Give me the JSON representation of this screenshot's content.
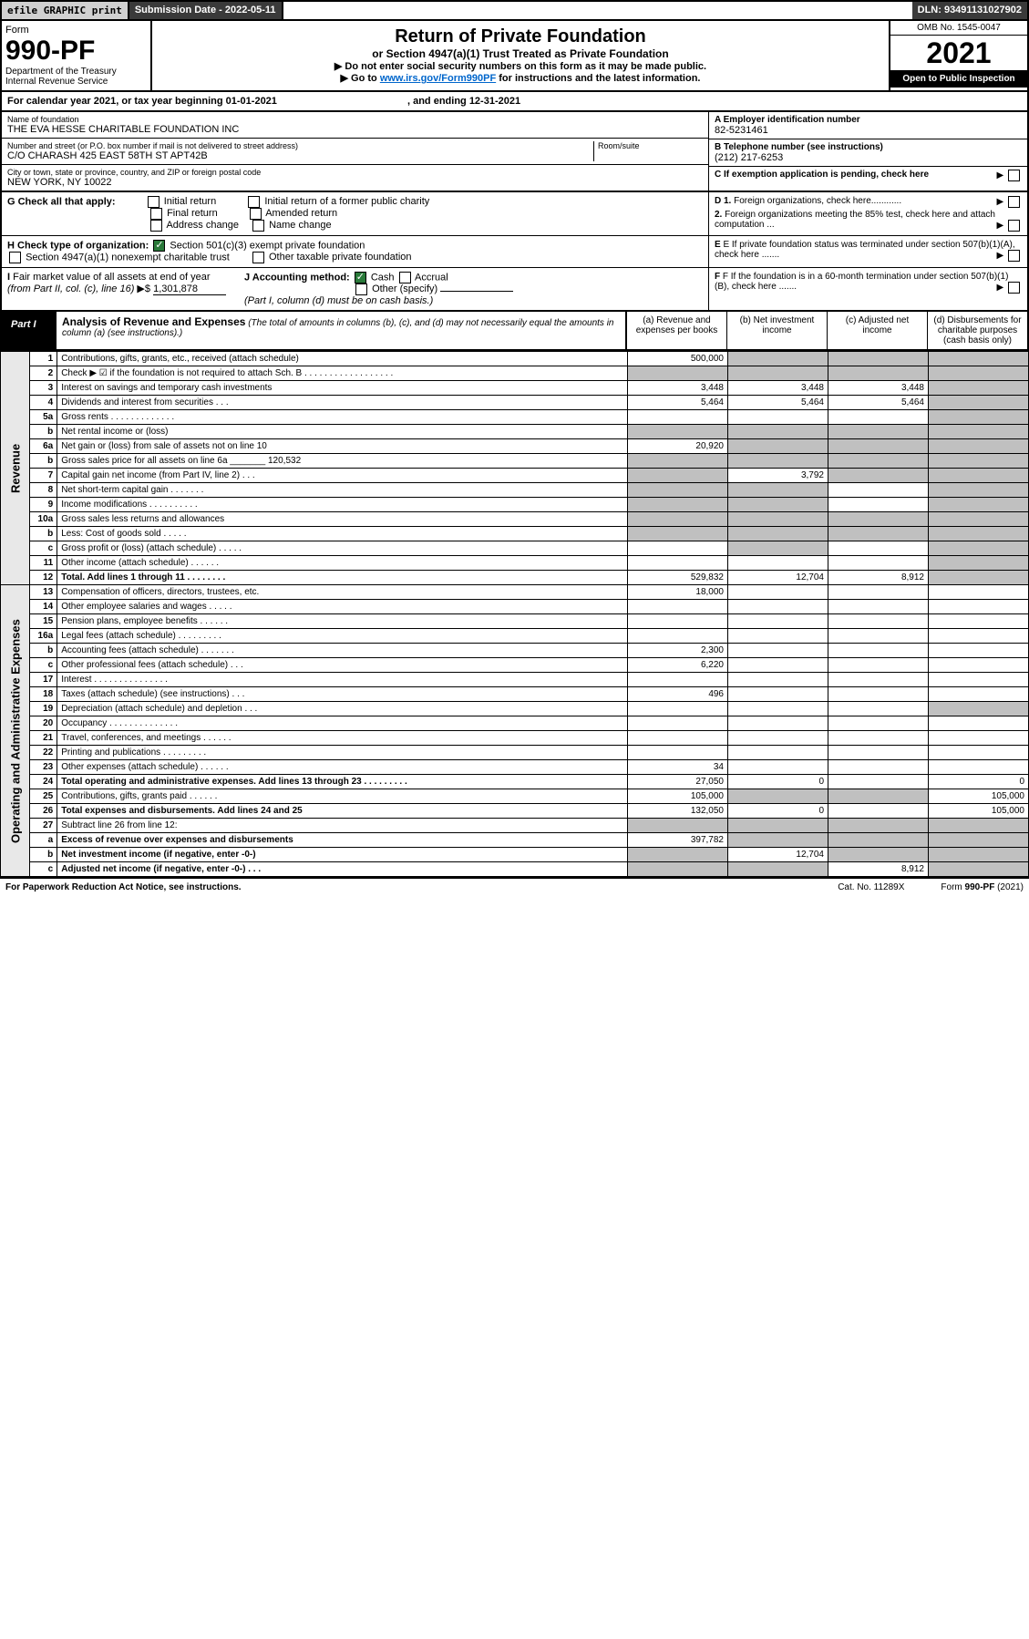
{
  "topbar": {
    "efile": "efile GRAPHIC print",
    "subdate_lbl": "Submission Date - 2022-05-11",
    "dln": "DLN: 93491131027902"
  },
  "header": {
    "form_word": "Form",
    "form_no": "990-PF",
    "dept": "Department of the Treasury",
    "irs": "Internal Revenue Service",
    "title": "Return of Private Foundation",
    "subtitle": "or Section 4947(a)(1) Trust Treated as Private Foundation",
    "note1": "▶ Do not enter social security numbers on this form as it may be made public.",
    "note2_pre": "▶ Go to ",
    "note2_link": "www.irs.gov/Form990PF",
    "note2_post": " for instructions and the latest information.",
    "omb": "OMB No. 1545-0047",
    "year": "2021",
    "open": "Open to Public Inspection"
  },
  "calyear": {
    "text": "For calendar year 2021, or tax year beginning 01-01-2021",
    "ending": ", and ending 12-31-2021"
  },
  "id": {
    "name_lbl": "Name of foundation",
    "name": "THE EVA HESSE CHARITABLE FOUNDATION INC",
    "addr_lbl": "Number and street (or P.O. box number if mail is not delivered to street address)",
    "addr": "C/O CHARASH 425 EAST 58TH ST APT42B",
    "room_lbl": "Room/suite",
    "city_lbl": "City or town, state or province, country, and ZIP or foreign postal code",
    "city": "NEW YORK, NY  10022",
    "a_lbl": "A Employer identification number",
    "a_val": "82-5231461",
    "b_lbl": "B Telephone number (see instructions)",
    "b_val": "(212) 217-6253",
    "c_lbl": "C If exemption application is pending, check here"
  },
  "checks": {
    "g_lbl": "G Check all that apply:",
    "g_opts": [
      "Initial return",
      "Initial return of a former public charity",
      "Final return",
      "Amended return",
      "Address change",
      "Name change"
    ],
    "h_lbl": "H Check type of organization:",
    "h_opts": [
      "Section 501(c)(3) exempt private foundation",
      "Section 4947(a)(1) nonexempt charitable trust",
      "Other taxable private foundation"
    ],
    "i_lbl": "I Fair market value of all assets at end of year (from Part II, col. (c), line 16) ▶$",
    "i_val": "1,301,878",
    "j_lbl": "J Accounting method:",
    "j_opts": [
      "Cash",
      "Accrual",
      "Other (specify)"
    ],
    "j_note": "(Part I, column (d) must be on cash basis.)",
    "d1": "D 1. Foreign organizations, check here............",
    "d2": "2. Foreign organizations meeting the 85% test, check here and attach computation ...",
    "e_lbl": "E If private foundation status was terminated under section 507(b)(1)(A), check here .......",
    "f_lbl": "F If the foundation is in a 60-month termination under section 507(b)(1)(B), check here ......."
  },
  "part1": {
    "label": "Part I",
    "title": "Analysis of Revenue and Expenses",
    "title_note": "(The total of amounts in columns (b), (c), and (d) may not necessarily equal the amounts in column (a) (see instructions).)",
    "cols": [
      "(a) Revenue and expenses per books",
      "(b) Net investment income",
      "(c) Adjusted net income",
      "(d) Disbursements for charitable purposes (cash basis only)"
    ]
  },
  "revenue_label": "Revenue",
  "expense_label": "Operating and Administrative Expenses",
  "rows": [
    {
      "ln": "1",
      "desc": "Contributions, gifts, grants, etc., received (attach schedule)",
      "a": "500,000",
      "b": "",
      "c": "",
      "d": "",
      "grey": [
        "b",
        "c",
        "d"
      ]
    },
    {
      "ln": "2",
      "desc": "Check ▶ ☑ if the foundation is not required to attach Sch. B  . . . . . . . . . . . . . . . . . .",
      "nocols": true,
      "grey": [
        "a",
        "b",
        "c",
        "d"
      ]
    },
    {
      "ln": "3",
      "desc": "Interest on savings and temporary cash investments",
      "a": "3,448",
      "b": "3,448",
      "c": "3,448",
      "d": "",
      "grey": [
        "d"
      ]
    },
    {
      "ln": "4",
      "desc": "Dividends and interest from securities  . . .",
      "a": "5,464",
      "b": "5,464",
      "c": "5,464",
      "d": "",
      "grey": [
        "d"
      ]
    },
    {
      "ln": "5a",
      "desc": "Gross rents  . . . . . . . . . . . . .",
      "a": "",
      "b": "",
      "c": "",
      "d": "",
      "grey": [
        "d"
      ]
    },
    {
      "ln": "b",
      "desc": "Net rental income or (loss)",
      "a": "",
      "b": "",
      "c": "",
      "d": "",
      "grey": [
        "a",
        "b",
        "c",
        "d"
      ]
    },
    {
      "ln": "6a",
      "desc": "Net gain or (loss) from sale of assets not on line 10",
      "a": "20,920",
      "b": "",
      "c": "",
      "d": "",
      "grey": [
        "b",
        "c",
        "d"
      ]
    },
    {
      "ln": "b",
      "desc": "Gross sales price for all assets on line 6a _______ 120,532",
      "grey": [
        "a",
        "b",
        "c",
        "d"
      ]
    },
    {
      "ln": "7",
      "desc": "Capital gain net income (from Part IV, line 2)  . . .",
      "a": "",
      "b": "3,792",
      "c": "",
      "d": "",
      "grey": [
        "a",
        "c",
        "d"
      ]
    },
    {
      "ln": "8",
      "desc": "Net short-term capital gain  . . . . . . .",
      "a": "",
      "b": "",
      "c": "",
      "d": "",
      "grey": [
        "a",
        "b",
        "d"
      ]
    },
    {
      "ln": "9",
      "desc": "Income modifications . . . . . . . . . .",
      "a": "",
      "b": "",
      "c": "",
      "d": "",
      "grey": [
        "a",
        "b",
        "d"
      ]
    },
    {
      "ln": "10a",
      "desc": "Gross sales less returns and allowances",
      "grey": [
        "a",
        "b",
        "c",
        "d"
      ]
    },
    {
      "ln": "b",
      "desc": "Less: Cost of goods sold  . . . . .",
      "grey": [
        "a",
        "b",
        "c",
        "d"
      ]
    },
    {
      "ln": "c",
      "desc": "Gross profit or (loss) (attach schedule)  . . . . .",
      "a": "",
      "b": "",
      "c": "",
      "d": "",
      "grey": [
        "b",
        "d"
      ]
    },
    {
      "ln": "11",
      "desc": "Other income (attach schedule)  . . . . . .",
      "a": "",
      "b": "",
      "c": "",
      "d": "",
      "grey": [
        "d"
      ]
    },
    {
      "ln": "12",
      "desc": "Total. Add lines 1 through 11  . . . . . . . .",
      "bold": true,
      "a": "529,832",
      "b": "12,704",
      "c": "8,912",
      "d": "",
      "grey": [
        "d"
      ]
    }
  ],
  "exp_rows": [
    {
      "ln": "13",
      "desc": "Compensation of officers, directors, trustees, etc.",
      "a": "18,000",
      "b": "",
      "c": "",
      "d": ""
    },
    {
      "ln": "14",
      "desc": "Other employee salaries and wages  . . . . .",
      "a": "",
      "b": "",
      "c": "",
      "d": ""
    },
    {
      "ln": "15",
      "desc": "Pension plans, employee benefits  . . . . . .",
      "a": "",
      "b": "",
      "c": "",
      "d": ""
    },
    {
      "ln": "16a",
      "desc": "Legal fees (attach schedule) . . . . . . . . .",
      "a": "",
      "b": "",
      "c": "",
      "d": ""
    },
    {
      "ln": "b",
      "desc": "Accounting fees (attach schedule) . . . . . . .",
      "a": "2,300",
      "b": "",
      "c": "",
      "d": ""
    },
    {
      "ln": "c",
      "desc": "Other professional fees (attach schedule)  . . .",
      "a": "6,220",
      "b": "",
      "c": "",
      "d": ""
    },
    {
      "ln": "17",
      "desc": "Interest . . . . . . . . . . . . . . .",
      "a": "",
      "b": "",
      "c": "",
      "d": ""
    },
    {
      "ln": "18",
      "desc": "Taxes (attach schedule) (see instructions)  . . .",
      "a": "496",
      "b": "",
      "c": "",
      "d": ""
    },
    {
      "ln": "19",
      "desc": "Depreciation (attach schedule) and depletion  . . .",
      "a": "",
      "b": "",
      "c": "",
      "d": "",
      "grey": [
        "d"
      ]
    },
    {
      "ln": "20",
      "desc": "Occupancy . . . . . . . . . . . . . .",
      "a": "",
      "b": "",
      "c": "",
      "d": ""
    },
    {
      "ln": "21",
      "desc": "Travel, conferences, and meetings . . . . . .",
      "a": "",
      "b": "",
      "c": "",
      "d": ""
    },
    {
      "ln": "22",
      "desc": "Printing and publications . . . . . . . . .",
      "a": "",
      "b": "",
      "c": "",
      "d": ""
    },
    {
      "ln": "23",
      "desc": "Other expenses (attach schedule) . . . . . .",
      "a": "34",
      "b": "",
      "c": "",
      "d": ""
    },
    {
      "ln": "24",
      "desc": "Total operating and administrative expenses. Add lines 13 through 23  . . . . . . . . .",
      "bold": true,
      "a": "27,050",
      "b": "0",
      "c": "",
      "d": "0"
    },
    {
      "ln": "25",
      "desc": "Contributions, gifts, grants paid  . . . . . .",
      "a": "105,000",
      "b": "",
      "c": "",
      "d": "105,000",
      "grey": [
        "b",
        "c"
      ]
    },
    {
      "ln": "26",
      "desc": "Total expenses and disbursements. Add lines 24 and 25",
      "bold": true,
      "a": "132,050",
      "b": "0",
      "c": "",
      "d": "105,000"
    },
    {
      "ln": "27",
      "desc": "Subtract line 26 from line 12:",
      "grey": [
        "a",
        "b",
        "c",
        "d"
      ]
    },
    {
      "ln": "a",
      "desc": "Excess of revenue over expenses and disbursements",
      "bold": true,
      "a": "397,782",
      "b": "",
      "c": "",
      "d": "",
      "grey": [
        "b",
        "c",
        "d"
      ]
    },
    {
      "ln": "b",
      "desc": "Net investment income (if negative, enter -0-)",
      "bold": true,
      "a": "",
      "b": "12,704",
      "c": "",
      "d": "",
      "grey": [
        "a",
        "c",
        "d"
      ]
    },
    {
      "ln": "c",
      "desc": "Adjusted net income (if negative, enter -0-)  . . .",
      "bold": true,
      "a": "",
      "b": "",
      "c": "8,912",
      "d": "",
      "grey": [
        "a",
        "b",
        "d"
      ]
    }
  ],
  "footer": {
    "left": "For Paperwork Reduction Act Notice, see instructions.",
    "mid": "Cat. No. 11289X",
    "right": "Form 990-PF (2021)"
  }
}
